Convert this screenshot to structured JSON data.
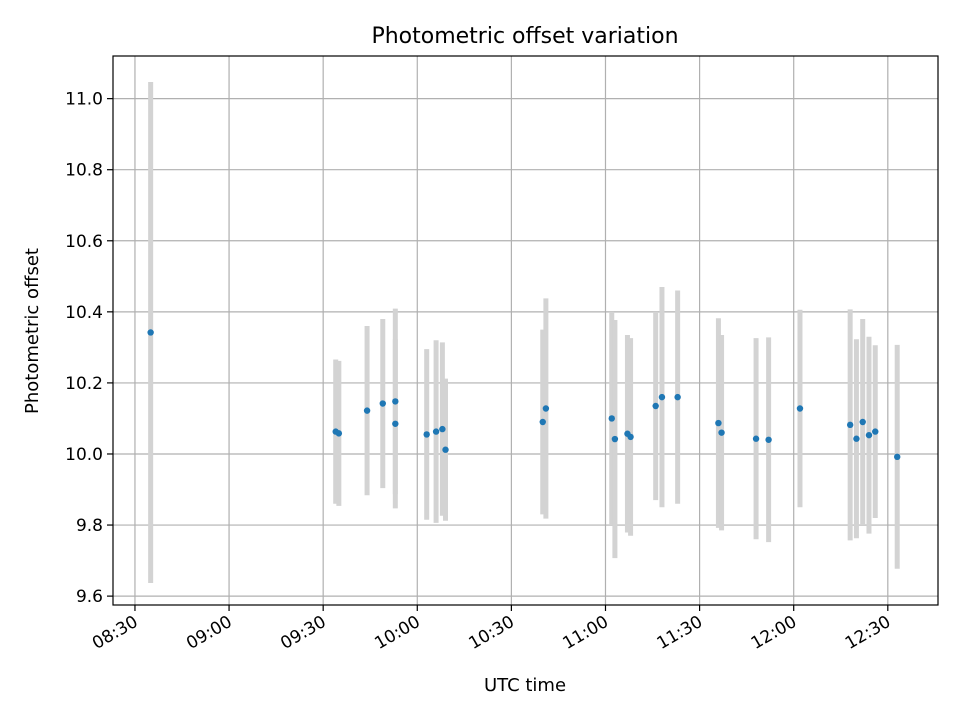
{
  "chart_data": {
    "type": "scatter",
    "title": "Photometric offset variation",
    "xlabel": "UTC time",
    "ylabel": "Photometric offset",
    "grid": true,
    "xlim": [
      "08:23",
      "12:46"
    ],
    "ylim": [
      9.575,
      11.12
    ],
    "x_ticks": [
      "08:30",
      "09:00",
      "09:30",
      "10:00",
      "10:30",
      "11:00",
      "11:30",
      "12:00",
      "12:30"
    ],
    "y_ticks": [
      9.6,
      9.8,
      10.0,
      10.2,
      10.4,
      10.6,
      10.8,
      11.0
    ],
    "y_tick_labels": [
      "9.6",
      "9.8",
      "10.0",
      "10.2",
      "10.4",
      "10.6",
      "10.8",
      "11.0"
    ],
    "marker_color": "#1f77b4",
    "errorbar_color": "#d3d3d3",
    "points": [
      {
        "x": "08:35",
        "y": 10.342,
        "err": 0.705
      },
      {
        "x": "09:34",
        "y": 10.063,
        "err": 0.203
      },
      {
        "x": "09:35",
        "y": 10.058,
        "err": 0.204
      },
      {
        "x": "09:44",
        "y": 10.122,
        "err": 0.238
      },
      {
        "x": "09:49",
        "y": 10.142,
        "err": 0.238
      },
      {
        "x": "09:53",
        "y": 10.085,
        "err": 0.238
      },
      {
        "x": "09:53",
        "y": 10.148,
        "err": 0.261
      },
      {
        "x": "10:03",
        "y": 10.055,
        "err": 0.24
      },
      {
        "x": "10:06",
        "y": 10.063,
        "err": 0.257
      },
      {
        "x": "10:08",
        "y": 10.07,
        "err": 0.244
      },
      {
        "x": "10:09",
        "y": 10.012,
        "err": 0.2
      },
      {
        "x": "10:40",
        "y": 10.09,
        "err": 0.26
      },
      {
        "x": "10:41",
        "y": 10.128,
        "err": 0.31
      },
      {
        "x": "11:02",
        "y": 10.1,
        "err": 0.3
      },
      {
        "x": "11:03",
        "y": 10.042,
        "err": 0.335
      },
      {
        "x": "11:07",
        "y": 10.057,
        "err": 0.278
      },
      {
        "x": "11:08",
        "y": 10.048,
        "err": 0.278
      },
      {
        "x": "11:16",
        "y": 10.135,
        "err": 0.265
      },
      {
        "x": "11:18",
        "y": 10.16,
        "err": 0.31
      },
      {
        "x": "11:23",
        "y": 10.16,
        "err": 0.3
      },
      {
        "x": "11:36",
        "y": 10.087,
        "err": 0.295
      },
      {
        "x": "11:37",
        "y": 10.06,
        "err": 0.275
      },
      {
        "x": "11:48",
        "y": 10.043,
        "err": 0.283
      },
      {
        "x": "11:52",
        "y": 10.04,
        "err": 0.288
      },
      {
        "x": "12:02",
        "y": 10.128,
        "err": 0.278
      },
      {
        "x": "12:18",
        "y": 10.082,
        "err": 0.325
      },
      {
        "x": "12:20",
        "y": 10.043,
        "err": 0.28
      },
      {
        "x": "12:22",
        "y": 10.09,
        "err": 0.29
      },
      {
        "x": "12:24",
        "y": 10.053,
        "err": 0.277
      },
      {
        "x": "12:26",
        "y": 10.063,
        "err": 0.243
      },
      {
        "x": "12:33",
        "y": 9.992,
        "err": 0.315
      }
    ]
  }
}
